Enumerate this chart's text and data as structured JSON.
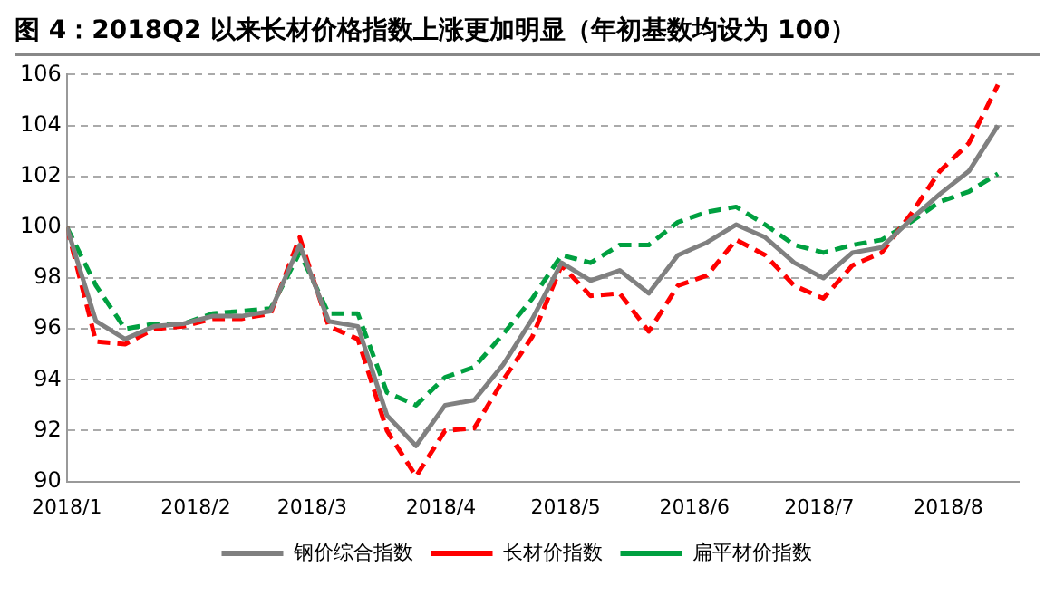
{
  "chart_data": {
    "type": "line",
    "title": "图 4：2018Q2 以来长材价格指数上涨更加明显（年初基数均设为 100）",
    "x": [
      "2018-01-01",
      "2018-01-08",
      "2018-01-15",
      "2018-01-22",
      "2018-01-29",
      "2018-02-05",
      "2018-02-12",
      "2018-02-19",
      "2018-02-26",
      "2018-03-05",
      "2018-03-12",
      "2018-03-19",
      "2018-03-26",
      "2018-04-02",
      "2018-04-09",
      "2018-04-16",
      "2018-04-23",
      "2018-04-30",
      "2018-05-07",
      "2018-05-14",
      "2018-05-21",
      "2018-05-28",
      "2018-06-04",
      "2018-06-11",
      "2018-06-18",
      "2018-06-25",
      "2018-07-02",
      "2018-07-09",
      "2018-07-16",
      "2018-07-23",
      "2018-07-30",
      "2018-08-06",
      "2018-08-13"
    ],
    "series": [
      {
        "name": "钢价综合指数",
        "color": "#808080",
        "line_style": "solid",
        "values": [
          100,
          96.3,
          95.6,
          96.1,
          96.2,
          96.5,
          96.5,
          96.7,
          99.3,
          96.3,
          96.1,
          92.6,
          91.4,
          93.0,
          93.2,
          94.6,
          96.4,
          98.6,
          97.9,
          98.3,
          97.4,
          98.9,
          99.4,
          100.1,
          99.6,
          98.6,
          98.0,
          99.0,
          99.2,
          100.3,
          101.3,
          102.2,
          104.0
        ]
      },
      {
        "name": "长材价指数",
        "color": "#ff0000",
        "line_style": "dashed",
        "values": [
          100,
          95.5,
          95.4,
          96.0,
          96.1,
          96.4,
          96.4,
          96.6,
          99.6,
          96.1,
          95.6,
          92.0,
          90.2,
          92.0,
          92.1,
          94.0,
          95.7,
          98.5,
          97.3,
          97.4,
          95.9,
          97.7,
          98.1,
          99.5,
          98.9,
          97.7,
          97.2,
          98.5,
          99.0,
          100.5,
          102.2,
          103.3,
          105.6
        ]
      },
      {
        "name": "扁平材价指数",
        "color": "#00a040",
        "line_style": "dashed",
        "values": [
          100,
          97.7,
          96.0,
          96.2,
          96.2,
          96.6,
          96.7,
          96.8,
          99.0,
          96.6,
          96.6,
          93.5,
          93.0,
          94.1,
          94.5,
          95.8,
          97.2,
          98.9,
          98.6,
          99.3,
          99.3,
          100.2,
          100.6,
          100.8,
          100.1,
          99.3,
          99.0,
          99.3,
          99.5,
          100.2,
          101.0,
          101.4,
          102.1
        ]
      }
    ],
    "xlim": [
      "2018-01-01",
      "2018-08-18"
    ],
    "xticks": [
      {
        "value": "2018-01-01",
        "label": "2018/1"
      },
      {
        "value": "2018-02-01",
        "label": "2018/2"
      },
      {
        "value": "2018-03-01",
        "label": "2018/3"
      },
      {
        "value": "2018-04-01",
        "label": "2018/4"
      },
      {
        "value": "2018-05-01",
        "label": "2018/5"
      },
      {
        "value": "2018-06-01",
        "label": "2018/6"
      },
      {
        "value": "2018-07-01",
        "label": "2018/7"
      },
      {
        "value": "2018-08-01",
        "label": "2018/8"
      }
    ],
    "ylim": [
      90,
      106
    ],
    "yticks": [
      90,
      92,
      94,
      96,
      98,
      100,
      102,
      104,
      106
    ],
    "grid": "y",
    "legend": "bottom",
    "marker": "none"
  }
}
